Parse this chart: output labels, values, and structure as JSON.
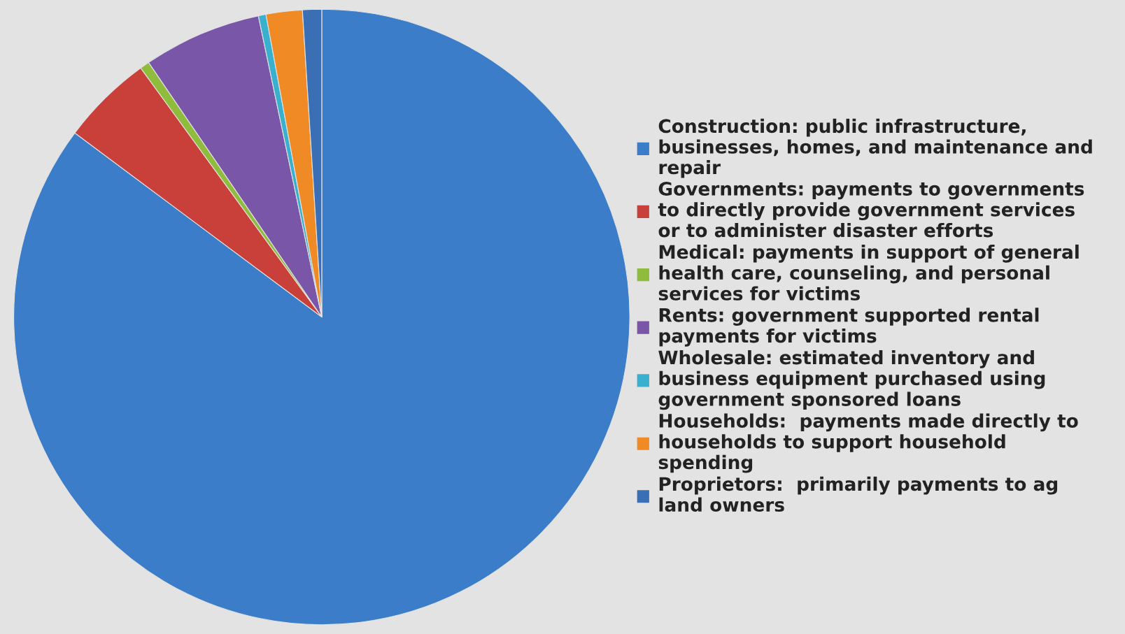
{
  "chart_data": {
    "type": "pie",
    "categories": [
      "Construction: public infrastructure, businesses, homes, and maintenance and repair",
      "Governments: payments to governments to directly provide government services or to administer disaster efforts",
      "Medical: payments in support of general health care, counseling, and personal services for victims",
      "Rents: government supported rental payments for victims",
      "Wholesale: estimated inventory and business equipment purchased using government sponsored loans",
      "Households:  payments made directly to households to support household spending",
      "Proprietors:  primarily payments to ag land owners"
    ],
    "values": [
      85.2,
      4.8,
      0.5,
      6.2,
      0.4,
      1.9,
      1.0
    ],
    "colors": [
      "#3b7dc9",
      "#c9403a",
      "#8fbc3d",
      "#7a56a8",
      "#3ab0cf",
      "#f08a24",
      "#3b6fb5"
    ],
    "legend": "right"
  }
}
